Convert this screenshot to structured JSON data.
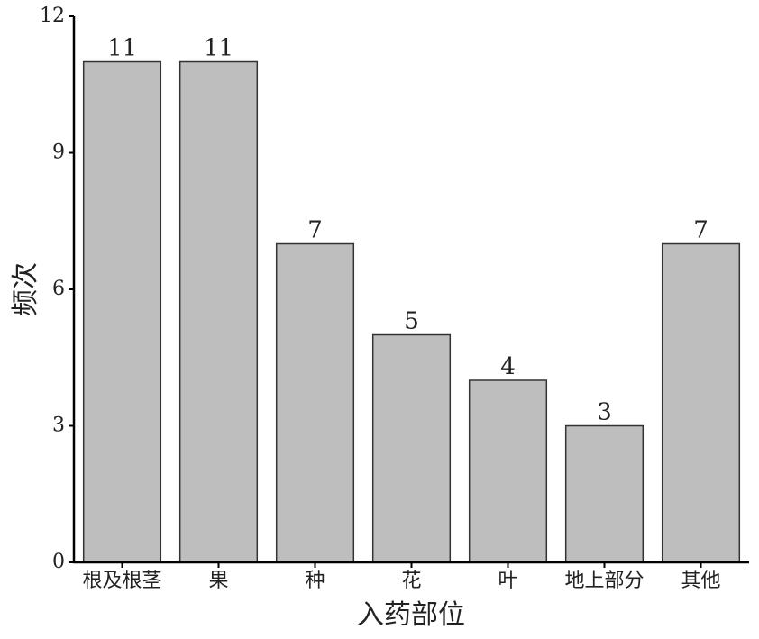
{
  "chart_data": {
    "type": "bar",
    "x_label": "入药部位",
    "y_label": "频次",
    "categories": [
      "根及根茎",
      "果",
      "种",
      "花",
      "叶",
      "地上部分",
      "其他"
    ],
    "values": [
      11,
      11,
      7,
      5,
      4,
      3,
      7
    ],
    "color": "#bebebe",
    "ylim": [
      0,
      12
    ],
    "yticks": [
      0,
      3,
      6,
      9,
      12
    ]
  }
}
